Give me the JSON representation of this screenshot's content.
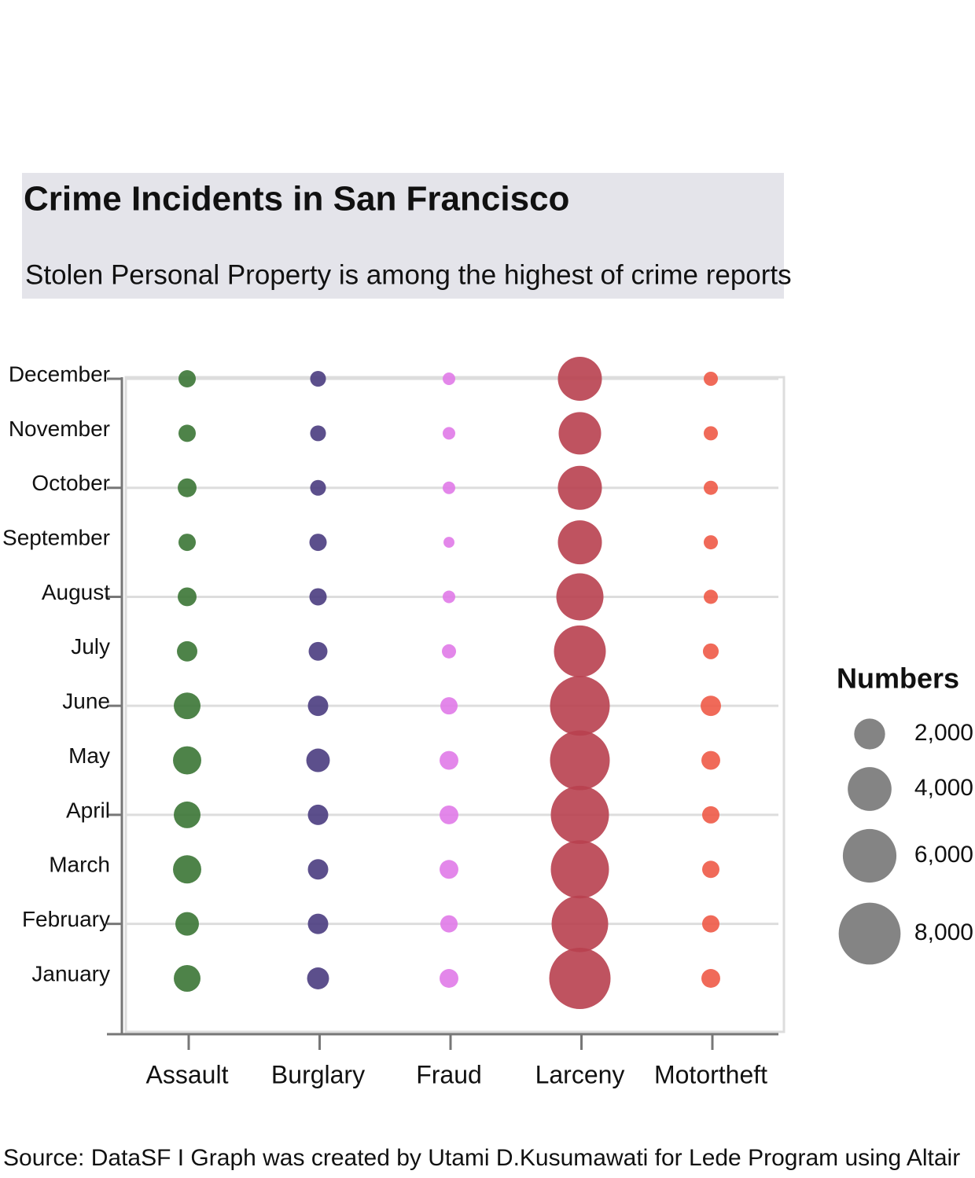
{
  "chart_data": {
    "type": "bubble",
    "title": "Crime Incidents in San Francisco",
    "subtitle": "Stolen Personal Property is among the highest of crime reports",
    "source": "Source: DataSF I Graph was created by Utami D.Kusumawati for Lede Program using Altair",
    "categories": [
      "Assault",
      "Burglary",
      "Fraud",
      "Larceny",
      "Motortheft"
    ],
    "months": [
      "January",
      "February",
      "March",
      "April",
      "May",
      "June",
      "July",
      "August",
      "September",
      "October",
      "November",
      "December"
    ],
    "series": [
      {
        "name": "Assault",
        "color": "#3b7535",
        "values": [
          1490,
          1160,
          1670,
          1490,
          1670,
          1490,
          870,
          740,
          625,
          740,
          625,
          625
        ]
      },
      {
        "name": "Burglary",
        "color": "#4a3c80",
        "values": [
          1010,
          870,
          870,
          870,
          1160,
          870,
          740,
          625,
          625,
          520,
          520,
          520
        ]
      },
      {
        "name": "Fraud",
        "color": "#e07ae8",
        "values": [
          740,
          625,
          740,
          740,
          740,
          625,
          420,
          330,
          250,
          330,
          330,
          330
        ]
      },
      {
        "name": "Larceny",
        "color": "#b8404f",
        "values": [
          7860,
          6690,
          7070,
          7070,
          7460,
          7460,
          5620,
          4650,
          4050,
          4050,
          3770,
          4050
        ]
      },
      {
        "name": "Motortheft",
        "color": "#ee5a47",
        "values": [
          740,
          625,
          625,
          625,
          740,
          870,
          520,
          420,
          420,
          420,
          420,
          420
        ]
      }
    ],
    "size_legend": {
      "title": "Numbers",
      "values": [
        {
          "value": 2000,
          "label": "2,000"
        },
        {
          "value": 4000,
          "label": "4,000"
        },
        {
          "value": 6000,
          "label": "6,000"
        },
        {
          "value": 8000,
          "label": "8,000"
        }
      ]
    }
  }
}
